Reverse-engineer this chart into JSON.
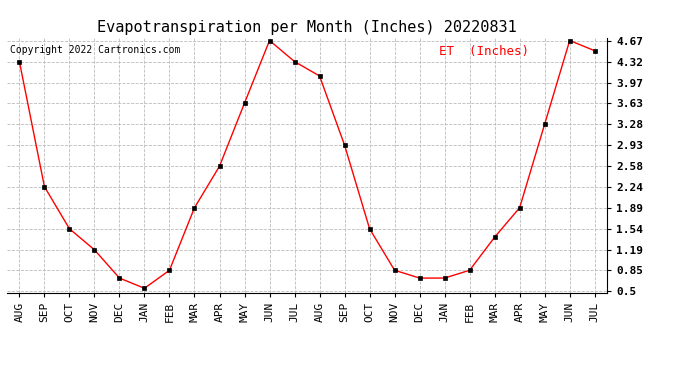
{
  "title": "Evapotranspiration per Month (Inches) 20220831",
  "copyright": "Copyright 2022 Cartronics.com",
  "legend_label": "ET  (Inches)",
  "x_labels": [
    "AUG",
    "SEP",
    "OCT",
    "NOV",
    "DEC",
    "JAN",
    "FEB",
    "MAR",
    "APR",
    "MAY",
    "JUN",
    "JUL",
    "AUG",
    "SEP",
    "OCT",
    "NOV",
    "DEC",
    "JAN",
    "FEB",
    "MAR",
    "APR",
    "MAY",
    "JUN",
    "JUL"
  ],
  "y_values": [
    4.32,
    2.24,
    1.54,
    1.19,
    0.72,
    0.55,
    0.85,
    1.89,
    2.58,
    3.63,
    4.67,
    4.32,
    4.08,
    2.93,
    1.54,
    0.85,
    0.72,
    0.72,
    0.85,
    1.4,
    1.89,
    3.28,
    4.67,
    4.5
  ],
  "yticks": [
    0.5,
    0.85,
    1.19,
    1.54,
    1.89,
    2.24,
    2.58,
    2.93,
    3.28,
    3.63,
    3.97,
    4.32,
    4.67
  ],
  "ylim": [
    0.5,
    4.67
  ],
  "line_color": "red",
  "marker_color": "black",
  "grid_color": "#bbbbbb",
  "bg_color": "white",
  "title_fontsize": 11,
  "tick_fontsize": 8,
  "copyright_fontsize": 7,
  "legend_fontsize": 9
}
